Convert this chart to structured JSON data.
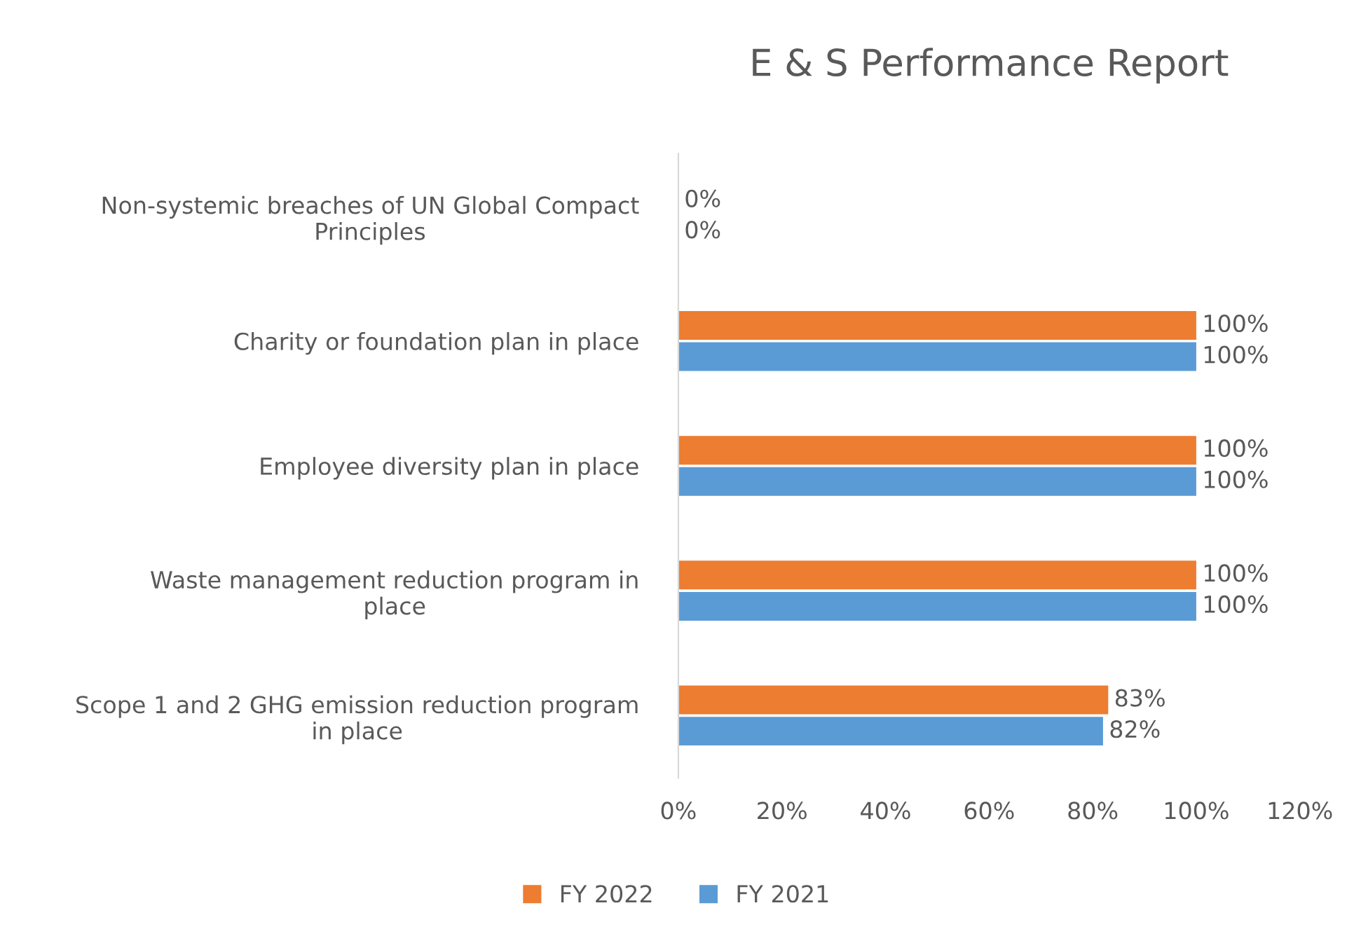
{
  "chart_data": {
    "type": "bar",
    "orientation": "horizontal",
    "title": "E & S Performance Report",
    "categories": [
      "Non-systemic breaches of UN Global Compact\nPrinciples",
      "Charity or foundation plan in place",
      "Employee diversity plan in place",
      "Waste management reduction program in\nplace",
      "Scope 1 and 2 GHG emission reduction program\nin place"
    ],
    "series": [
      {
        "name": "FY 2022",
        "color": "#ed7d31",
        "values": [
          0,
          100,
          100,
          100,
          83
        ],
        "value_labels": [
          "0%",
          "100%",
          "100%",
          "100%",
          "83%"
        ]
      },
      {
        "name": "FY 2021",
        "color": "#5b9bd5",
        "values": [
          0,
          100,
          100,
          100,
          82
        ],
        "value_labels": [
          "0%",
          "100%",
          "100%",
          "100%",
          "82%"
        ]
      }
    ],
    "xlim": [
      0,
      120
    ],
    "xticks": [
      {
        "value": 0,
        "label": "0%"
      },
      {
        "value": 20,
        "label": "20%"
      },
      {
        "value": 40,
        "label": "40%"
      },
      {
        "value": 60,
        "label": "60%"
      },
      {
        "value": 80,
        "label": "80%"
      },
      {
        "value": 100,
        "label": "100%"
      },
      {
        "value": 120,
        "label": "120%"
      }
    ],
    "grid": false,
    "legend": "bottom"
  }
}
